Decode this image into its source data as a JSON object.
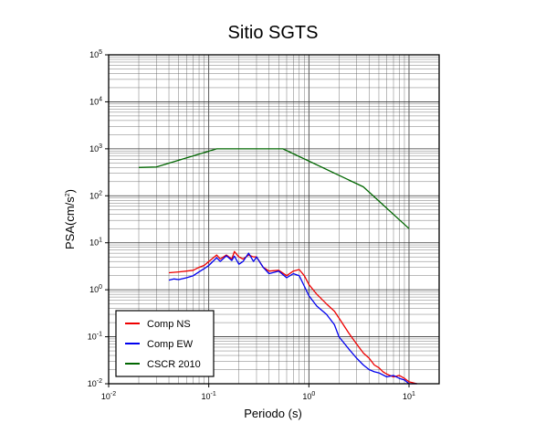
{
  "chart_data": {
    "type": "line",
    "title": "Sitio SGTS",
    "xlabel": "Periodo (s)",
    "ylabel": "PSA(cm/s²)",
    "xscale": "log",
    "yscale": "log",
    "xlim": [
      0.01,
      20
    ],
    "ylim": [
      0.01,
      100000
    ],
    "grid": true,
    "legend_position": "bottom-left",
    "x_tick_labels": [
      "10⁻²",
      "10⁻¹",
      "10⁰",
      "10¹"
    ],
    "y_tick_labels": [
      "10⁻²",
      "10⁻¹",
      "10⁰",
      "10¹",
      "10²",
      "10³",
      "10⁴",
      "10⁵"
    ],
    "series": [
      {
        "name": "Comp NS",
        "color": "#ee0000",
        "x": [
          0.04,
          0.05,
          0.06,
          0.07,
          0.08,
          0.09,
          0.1,
          0.12,
          0.13,
          0.15,
          0.17,
          0.18,
          0.2,
          0.22,
          0.25,
          0.28,
          0.3,
          0.35,
          0.4,
          0.5,
          0.6,
          0.7,
          0.8,
          0.9,
          1.0,
          1.2,
          1.5,
          1.8,
          2.0,
          2.5,
          3.0,
          3.5,
          4.0,
          4.5,
          5.0,
          5.5,
          6.0,
          7.0,
          8.0,
          9.0,
          10.0,
          12.0
        ],
        "y": [
          2.3,
          2.4,
          2.5,
          2.6,
          3.0,
          3.3,
          4.0,
          5.5,
          4.5,
          5.5,
          4.5,
          6.5,
          5.0,
          4.5,
          5.5,
          5.0,
          5.0,
          3.0,
          2.5,
          2.6,
          2.0,
          2.5,
          2.7,
          2.0,
          1.3,
          0.8,
          0.5,
          0.35,
          0.25,
          0.12,
          0.07,
          0.045,
          0.035,
          0.025,
          0.022,
          0.018,
          0.016,
          0.014,
          0.015,
          0.013,
          0.011,
          0.01
        ]
      },
      {
        "name": "Comp EW",
        "color": "#0000ee",
        "x": [
          0.04,
          0.045,
          0.05,
          0.06,
          0.07,
          0.08,
          0.09,
          0.1,
          0.12,
          0.13,
          0.15,
          0.17,
          0.18,
          0.2,
          0.22,
          0.25,
          0.28,
          0.3,
          0.35,
          0.4,
          0.5,
          0.6,
          0.7,
          0.8,
          0.9,
          1.0,
          1.2,
          1.5,
          1.8,
          2.0,
          2.5,
          3.0,
          3.5,
          4.0,
          4.5,
          5.0,
          6.0,
          7.0,
          8.0,
          9.0,
          10.0,
          12.0
        ],
        "y": [
          1.6,
          1.7,
          1.65,
          1.8,
          2.0,
          2.4,
          2.8,
          3.3,
          4.8,
          4.0,
          5.3,
          4.2,
          5.2,
          3.5,
          4.0,
          6.0,
          4.0,
          5.0,
          3.0,
          2.2,
          2.5,
          1.8,
          2.2,
          2.0,
          1.2,
          0.75,
          0.45,
          0.3,
          0.18,
          0.1,
          0.055,
          0.035,
          0.025,
          0.02,
          0.018,
          0.017,
          0.014,
          0.015,
          0.013,
          0.012,
          0.01,
          0.01
        ]
      },
      {
        "name": "CSCR 2010",
        "color": "#006600",
        "x": [
          0.02,
          0.03,
          0.12,
          0.55,
          3.5,
          10.0
        ],
        "y": [
          400,
          410,
          1000,
          1000,
          155,
          20
        ]
      }
    ]
  }
}
